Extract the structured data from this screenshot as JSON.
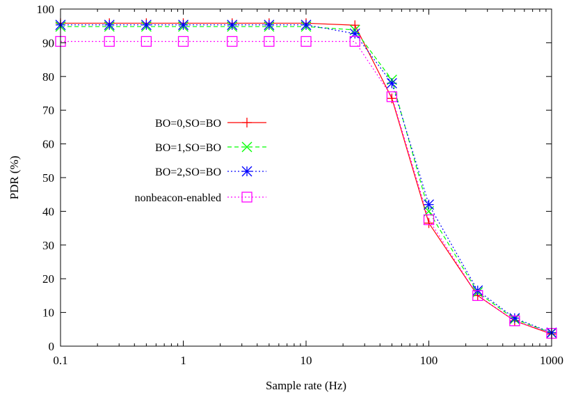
{
  "chart_data": {
    "type": "line",
    "title": "",
    "xlabel": "Sample rate (Hz)",
    "ylabel": "PDR (%)",
    "xscale": "log",
    "xlim": [
      0.1,
      1000
    ],
    "ylim": [
      0,
      100
    ],
    "xticks": [
      0.1,
      1,
      10,
      100,
      1000
    ],
    "xtick_labels": [
      "0.1",
      "1",
      "10",
      "100",
      "1000"
    ],
    "yticks": [
      0,
      10,
      20,
      30,
      40,
      50,
      60,
      70,
      80,
      90,
      100
    ],
    "ytick_labels": [
      "0",
      "10",
      "20",
      "30",
      "40",
      "50",
      "60",
      "70",
      "80",
      "90",
      "100"
    ],
    "grid": false,
    "legend_position": "center-left",
    "x": [
      0.1,
      0.25,
      0.5,
      1,
      2.5,
      5,
      10,
      25,
      50,
      100,
      250,
      500,
      1000
    ],
    "series": [
      {
        "name": "BO=0,SO=BO",
        "color": "#ff0000",
        "dash": "solid",
        "marker": "plus",
        "values": [
          95.8,
          95.8,
          95.8,
          95.8,
          95.8,
          95.8,
          95.8,
          95.2,
          73.5,
          36.5,
          15.0,
          7.5,
          3.6
        ]
      },
      {
        "name": "BO=1,SO=BO",
        "color": "#00ff00",
        "dash": "dashed",
        "marker": "cross",
        "values": [
          94.8,
          94.8,
          94.8,
          94.8,
          94.8,
          94.8,
          94.8,
          93.8,
          79.0,
          40.0,
          16.0,
          8.0,
          3.9
        ]
      },
      {
        "name": "BO=2,SO=BO",
        "color": "#0000ff",
        "dash": "dotted",
        "marker": "asterisk",
        "values": [
          95.3,
          95.3,
          95.3,
          95.3,
          95.3,
          95.3,
          95.3,
          92.7,
          78.0,
          42.0,
          16.5,
          8.3,
          4.0
        ]
      },
      {
        "name": "nonbeacon-enabled",
        "color": "#ff00ff",
        "dash": "dotted",
        "marker": "square",
        "values": [
          90.4,
          90.4,
          90.4,
          90.4,
          90.4,
          90.4,
          90.4,
          90.4,
          74.0,
          37.5,
          15.0,
          7.5,
          3.8
        ]
      }
    ]
  }
}
